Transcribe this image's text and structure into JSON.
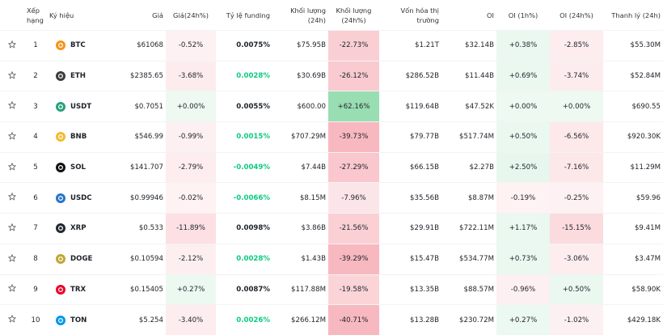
{
  "table": {
    "header": [
      "Xếp hạng",
      "Ký hiệu",
      "Giá",
      "Giá(24h%)",
      "Tỷ lệ funding",
      "Khối lượng (24h)",
      "Khối lượng (24h%)",
      "Vốn hóa thị trường",
      "OI",
      "OI (1h%)",
      "OI (24h%)",
      "Thanh lý (24h)"
    ],
    "rows": [
      [
        "1",
        "BTC",
        "$61068",
        "-0.52%",
        "0.0075%",
        "$75.95B",
        "-22.73%",
        "$1.21T",
        "$32.14B",
        "+0.38%",
        "-2.85%",
        "$55.30M"
      ],
      [
        "2",
        "ETH",
        "$2385.65",
        "-3.68%",
        "0.0028%",
        "$30.69B",
        "-26.12%",
        "$286.52B",
        "$11.44B",
        "+0.69%",
        "-3.74%",
        "$52.84M"
      ],
      [
        "3",
        "USDT",
        "$0.7051",
        "+0.00%",
        "0.0055%",
        "$600.00",
        "+62.16%",
        "$119.64B",
        "$47.52K",
        "+0.00%",
        "+0.00%",
        "$690.55"
      ],
      [
        "4",
        "BNB",
        "$546.99",
        "-0.99%",
        "0.0015%",
        "$707.29M",
        "-39.73%",
        "$79.77B",
        "$517.74M",
        "+0.50%",
        "-6.56%",
        "$920.30K"
      ],
      [
        "5",
        "SOL",
        "$141.707",
        "-2.79%",
        "-0.0049%",
        "$7.44B",
        "-27.29%",
        "$66.15B",
        "$2.27B",
        "+2.50%",
        "-7.16%",
        "$11.29M"
      ],
      [
        "6",
        "USDC",
        "$0.99946",
        "-0.02%",
        "-0.0066%",
        "$8.15M",
        "-7.96%",
        "$35.56B",
        "$8.87M",
        "-0.19%",
        "-0.25%",
        "$59.96"
      ],
      [
        "7",
        "XRP",
        "$0.533",
        "-11.89%",
        "0.0098%",
        "$3.86B",
        "-21.56%",
        "$29.91B",
        "$722.11M",
        "+1.17%",
        "-15.15%",
        "$9.41M"
      ],
      [
        "8",
        "DOGE",
        "$0.10594",
        "-2.12%",
        "0.0028%",
        "$1.43B",
        "-39.29%",
        "$15.47B",
        "$534.77M",
        "+0.73%",
        "-3.06%",
        "$3.47M"
      ],
      [
        "9",
        "TRX",
        "$0.15405",
        "+0.27%",
        "0.0087%",
        "$117.88M",
        "-19.58%",
        "$13.35B",
        "$88.57M",
        "-0.96%",
        "+0.50%",
        "$58.90K"
      ],
      [
        "10",
        "TON",
        "$5.254",
        "-3.40%",
        "0.0026%",
        "$266.12M",
        "-40.71%",
        "$13.28B",
        "$230.72M",
        "+0.27%",
        "-1.02%",
        "$429.18K"
      ]
    ]
  }
}
